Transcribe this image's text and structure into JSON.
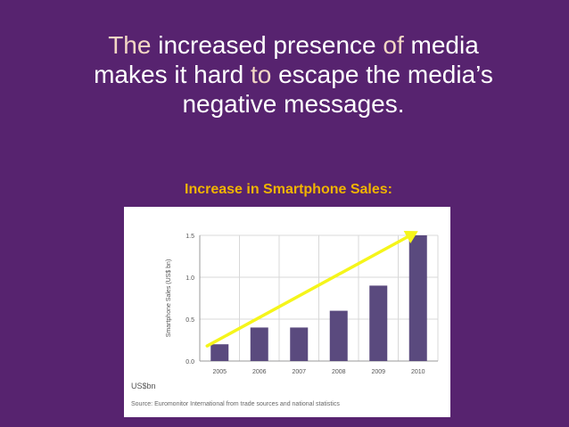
{
  "slide": {
    "title_words": [
      {
        "text": "The",
        "accent": true
      },
      {
        "text": "increased",
        "accent": false
      },
      {
        "text": "presence",
        "accent": false
      },
      {
        "text": "of",
        "accent": true
      },
      {
        "text": "media",
        "accent": false
      },
      {
        "text": "makes",
        "accent": false
      },
      {
        "text": "it",
        "accent": false
      },
      {
        "text": "hard",
        "accent": false
      },
      {
        "text": "to",
        "accent": true
      },
      {
        "text": "escape",
        "accent": false
      },
      {
        "text": "the",
        "accent": false
      },
      {
        "text": "media’s",
        "accent": false
      },
      {
        "text": "negative",
        "accent": false
      },
      {
        "text": "messages.",
        "accent": false
      }
    ],
    "chart_heading": "Increase in Smartphone Sales:",
    "colors": {
      "background": "#57236f",
      "heading": "#f0b400",
      "bar": "#5a4a7e",
      "arrow": "#f5f51a"
    }
  },
  "chart_data": {
    "type": "bar",
    "categories": [
      "2005",
      "2006",
      "2007",
      "2008",
      "2009",
      "2010"
    ],
    "values": [
      0.2,
      0.4,
      0.4,
      0.6,
      0.9,
      1.5
    ],
    "ylabel": "Smartphone Sales (US$ bn)",
    "ylim": [
      0,
      1.5
    ],
    "yticks": [
      0.0,
      0.5,
      1.0,
      1.5
    ],
    "ytick_labels": [
      "0.0",
      "0.5",
      "1.0",
      "1.5"
    ],
    "grid": true,
    "unit_note": "US$bn",
    "source": "Source: Euromonitor International from trade sources and national statistics",
    "trend_arrow": {
      "from_category": "2005",
      "from_value": 0.18,
      "to_category": "2010",
      "to_value": 1.55
    }
  }
}
